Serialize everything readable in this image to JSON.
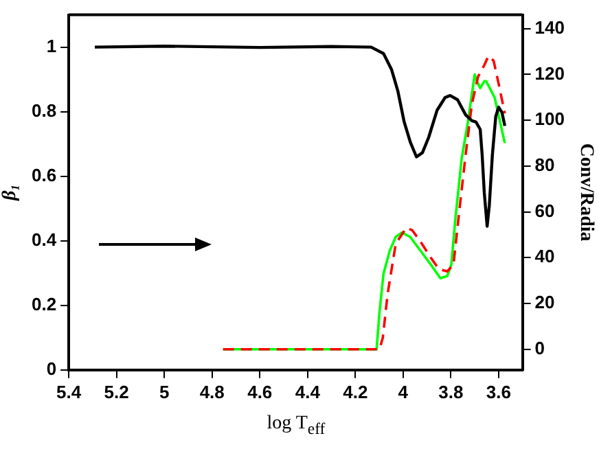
{
  "chart_data": {
    "type": "line",
    "xlabel": "log T$_{eff}$",
    "ylabel": "β₁",
    "y2label": "Conv/Radia",
    "xlim": [
      5.4,
      3.5
    ],
    "xticks": [
      5.4,
      5.2,
      5,
      4.8,
      4.6,
      4.4,
      4.2,
      4,
      3.8,
      3.6
    ],
    "ylim": [
      0,
      1.1
    ],
    "yticks": [
      0,
      0.2,
      0.4,
      0.6,
      0.8,
      1
    ],
    "y2lim": [
      -9,
      146
    ],
    "y2ticks": [
      0,
      20,
      40,
      60,
      80,
      100,
      120,
      140
    ],
    "grid": false,
    "legend": false,
    "marker": "none",
    "series": [
      {
        "color": "#000000",
        "line_style": "solid",
        "x": [
          5.291,
          5.0,
          4.6,
          4.3,
          4.134,
          4.082,
          4.048,
          4.022,
          3.996,
          3.97,
          3.944,
          3.919,
          3.893,
          3.858,
          3.824,
          3.803,
          3.772,
          3.738,
          3.712,
          3.695,
          3.677,
          3.669,
          3.66,
          3.648,
          3.639,
          3.626,
          3.612,
          3.6,
          3.586,
          3.574
        ],
        "values": [
          1.0,
          1.003,
          0.999,
          1.002,
          1.0,
          0.98,
          0.93,
          0.864,
          0.77,
          0.706,
          0.66,
          0.673,
          0.72,
          0.804,
          0.844,
          0.85,
          0.837,
          0.79,
          0.772,
          0.768,
          0.745,
          0.667,
          0.549,
          0.445,
          0.509,
          0.667,
          0.785,
          0.814,
          0.798,
          0.756
        ]
      },
      {
        "color": "#ff0000",
        "line_style": "dashed",
        "axis": "y2",
        "x": [
          4.754,
          4.099,
          4.085,
          4.065,
          4.031,
          3.987,
          3.962,
          3.927,
          3.884,
          3.85,
          3.815,
          3.789,
          3.764,
          3.738,
          3.712,
          3.686,
          3.66,
          3.643,
          3.621,
          3.6,
          3.574
        ],
        "values": [
          0,
          0,
          5,
          24,
          46,
          53,
          52,
          47,
          40,
          35,
          34,
          37,
          61,
          85,
          107,
          119,
          124,
          128,
          126,
          116,
          103
        ]
      },
      {
        "color": "#00ff00",
        "line_style": "solid",
        "axis": "y2",
        "x": [
          4.754,
          4.111,
          4.099,
          4.082,
          4.056,
          4.031,
          4.005,
          3.97,
          3.927,
          3.884,
          3.844,
          3.815,
          3.798,
          3.781,
          3.755,
          3.729,
          3.7,
          3.695,
          3.677,
          3.66,
          3.652,
          3.617,
          3.574
        ],
        "values": [
          0,
          0,
          16,
          33,
          43,
          49,
          51,
          49,
          43,
          37,
          31,
          32,
          37,
          57,
          83,
          99,
          120,
          118,
          114,
          117,
          117,
          110,
          90
        ]
      }
    ]
  }
}
